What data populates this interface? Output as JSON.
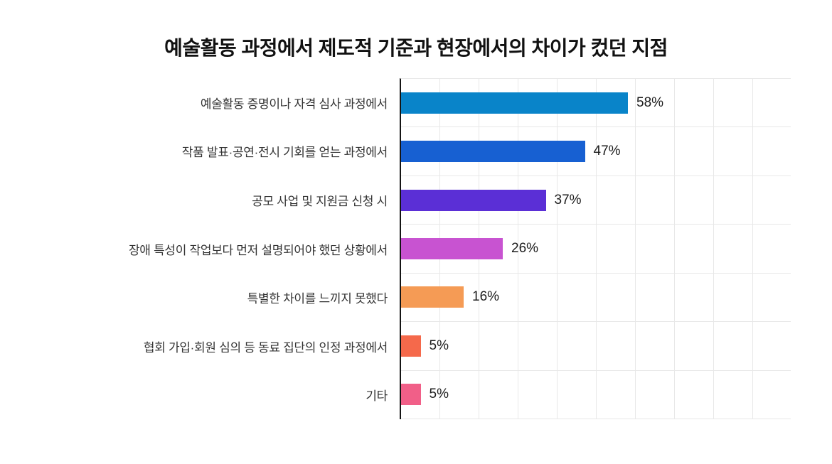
{
  "chart_data": {
    "type": "bar",
    "orientation": "horizontal",
    "title": "예술활동 과정에서 제도적 기준과 현장에서의 차이가 컸던 지점",
    "categories": [
      "예술활동 증명이나 자격 심사 과정에서",
      "작품 발표·공연·전시 기회를 얻는 과정에서",
      "공모 사업 및 지원금 신청 시",
      "장애 특성이 작업보다 먼저 설명되어야 했던 상황에서",
      "특별한 차이를 느끼지 못했다",
      "협회 가입·회원 심의 등 동료 집단의 인정 과정에서",
      "기타"
    ],
    "values": [
      58,
      47,
      37,
      26,
      16,
      5,
      5
    ],
    "value_labels": [
      "58%",
      "47%",
      "37%",
      "26%",
      "16%",
      "5%",
      "5%"
    ],
    "bar_colors": [
      "#0984C9",
      "#1760D2",
      "#5B2FD6",
      "#C853D1",
      "#F59B55",
      "#F5694B",
      "#F15F88"
    ],
    "xlabel": "",
    "ylabel": "",
    "xlim": [
      0,
      100
    ],
    "gridline_interval": 10,
    "grid": true,
    "legend": false,
    "grid_color": "#e8e8e8",
    "axis_color": "#151515"
  }
}
